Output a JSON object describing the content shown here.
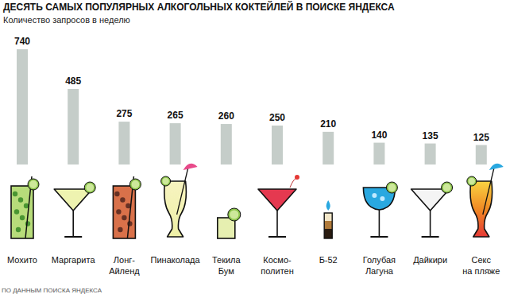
{
  "chart_data": {
    "type": "bar",
    "title": "ДЕСЯТЬ САМЫХ ПОПУЛЯРНЫХ АЛКОГОЛЬНЫХ КОКТЕЙЛЕЙ В ПОИСКЕ ЯНДЕКСА",
    "subtitle": "Количество запросов в неделю",
    "annotations": [
      "ПО ДАННЫМ ПОИСКА ЯНДЕКСА"
    ],
    "categories": [
      "Мохито",
      "Маргарита",
      "Лонг-\nАйленд",
      "Пинаколада",
      "Текила\nБум",
      "Космо-\nполитен",
      "Б-52",
      "Голубая\nЛагуна",
      "Дайкири",
      "Секс\nна пляже"
    ],
    "values": [
      740,
      485,
      275,
      265,
      260,
      250,
      210,
      140,
      135,
      125
    ],
    "color": "#c5cdc9",
    "ylim": [
      0,
      740
    ],
    "data_labels": true,
    "tick_labels": false,
    "grid": false
  }
}
